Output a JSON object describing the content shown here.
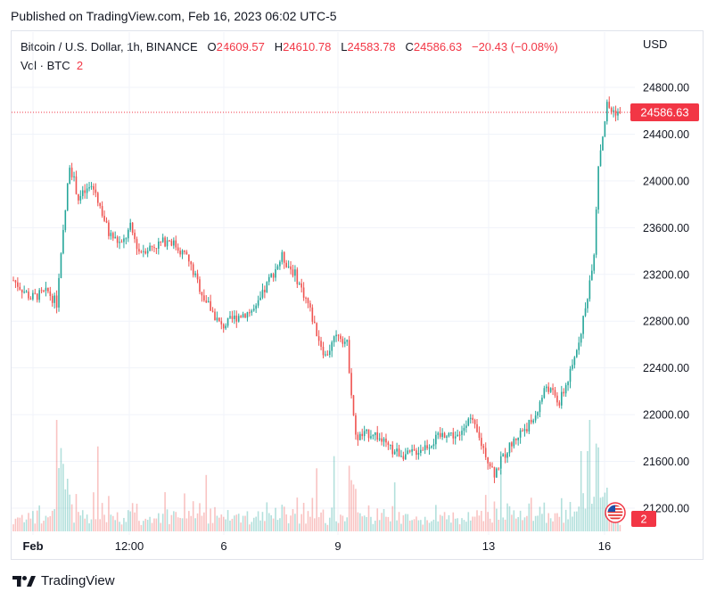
{
  "header": {
    "published": "Published on TradingView.com, Feb 16, 2023 06:02 UTC-5"
  },
  "legend": {
    "symbol": "Bitcoin / U.S. Dollar, 1h, BINANCE",
    "open_label": "O",
    "open": "24609.57",
    "high_label": "H",
    "high": "24610.78",
    "low_label": "L",
    "low": "24583.78",
    "close_label": "C",
    "close": "24586.63",
    "change": "−20.43 (−0.08%)",
    "vol_label": "Vol · BTC",
    "vol_value": "2"
  },
  "axis": {
    "currency": "USD"
  },
  "brand": {
    "name": "TradingView"
  },
  "colors": {
    "up": "#26a69a",
    "down": "#ef5350",
    "price_line": "#f23645",
    "grid": "#f0f3fa"
  },
  "chart_data": {
    "type": "candlestick",
    "interval": "1h",
    "y_ticks": [
      21200,
      21600,
      22000,
      22400,
      22800,
      23200,
      23600,
      24000,
      24400,
      24800
    ],
    "ylim": [
      21000,
      24950
    ],
    "x_tick_labels": [
      "Feb",
      "12:00",
      "6",
      "9",
      "13",
      "16"
    ],
    "current_price": "24586.63",
    "volume_badge": "2",
    "keypoints": [
      {
        "t": 0,
        "p": 23150
      },
      {
        "t": 8,
        "p": 23000
      },
      {
        "t": 16,
        "p": 23050
      },
      {
        "t": 20,
        "p": 22950
      },
      {
        "t": 24,
        "p": 23750
      },
      {
        "t": 26,
        "p": 24150
      },
      {
        "t": 30,
        "p": 23850
      },
      {
        "t": 36,
        "p": 23950
      },
      {
        "t": 38,
        "p": 23900
      },
      {
        "t": 44,
        "p": 23550
      },
      {
        "t": 50,
        "p": 23450
      },
      {
        "t": 54,
        "p": 23600
      },
      {
        "t": 58,
        "p": 23400
      },
      {
        "t": 66,
        "p": 23450
      },
      {
        "t": 72,
        "p": 23500
      },
      {
        "t": 80,
        "p": 23350
      },
      {
        "t": 88,
        "p": 23000
      },
      {
        "t": 96,
        "p": 22750
      },
      {
        "t": 104,
        "p": 22850
      },
      {
        "t": 112,
        "p": 22900
      },
      {
        "t": 118,
        "p": 23150
      },
      {
        "t": 124,
        "p": 23350
      },
      {
        "t": 130,
        "p": 23200
      },
      {
        "t": 136,
        "p": 22950
      },
      {
        "t": 140,
        "p": 22700
      },
      {
        "t": 144,
        "p": 22500
      },
      {
        "t": 150,
        "p": 22700
      },
      {
        "t": 154,
        "p": 22600
      },
      {
        "t": 158,
        "p": 21800
      },
      {
        "t": 166,
        "p": 21850
      },
      {
        "t": 174,
        "p": 21700
      },
      {
        "t": 182,
        "p": 21650
      },
      {
        "t": 192,
        "p": 21750
      },
      {
        "t": 200,
        "p": 21850
      },
      {
        "t": 206,
        "p": 21800
      },
      {
        "t": 210,
        "p": 22000
      },
      {
        "t": 216,
        "p": 21750
      },
      {
        "t": 222,
        "p": 21500
      },
      {
        "t": 228,
        "p": 21700
      },
      {
        "t": 234,
        "p": 21850
      },
      {
        "t": 240,
        "p": 21950
      },
      {
        "t": 246,
        "p": 22250
      },
      {
        "t": 252,
        "p": 22100
      },
      {
        "t": 258,
        "p": 22400
      },
      {
        "t": 264,
        "p": 22900
      },
      {
        "t": 268,
        "p": 23400
      },
      {
        "t": 270,
        "p": 24150
      },
      {
        "t": 272,
        "p": 24400
      },
      {
        "t": 274,
        "p": 24650
      },
      {
        "t": 276,
        "p": 24600
      },
      {
        "t": 280,
        "p": 24587
      }
    ]
  }
}
